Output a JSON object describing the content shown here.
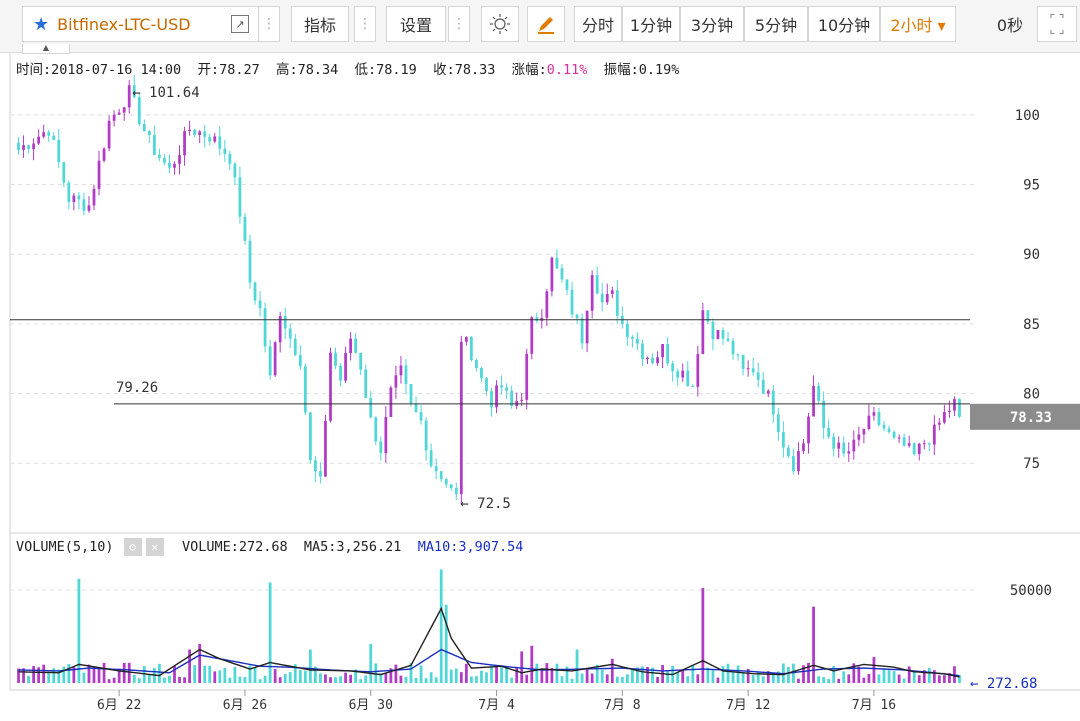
{
  "toolbar": {
    "symbol": "Bitfinex-LTC-USD",
    "indicator_label": "指标",
    "settings_label": "设置",
    "timeframes": [
      "分时",
      "1分钟",
      "3分钟",
      "5分钟",
      "10分钟",
      "2小时"
    ],
    "active_timeframe": "2小时",
    "countdown": "0秒",
    "accent_color": "#e07b00"
  },
  "info_bar": {
    "time": "时间:2018-07-16 14:00",
    "open": "开:78.27",
    "high": "高:78.34",
    "low": "低:78.19",
    "close": "收:78.33",
    "change_label": "涨幅:",
    "change_value": "0.11%",
    "amplitude": "振幅:0.19%"
  },
  "volume_info": {
    "title": "VOLUME(5,10)",
    "volume": "VOLUME:272.68",
    "ma5": "MA5:3,256.21",
    "ma10": "MA10:3,907.54"
  },
  "chart_data": {
    "type": "candlestick",
    "price_axis": {
      "ticks": [
        "100",
        "95",
        "90",
        "85",
        "80",
        "75"
      ],
      "ylim": [
        71.5,
        102.5
      ]
    },
    "volume_axis": {
      "ticks": [
        "50000"
      ],
      "ylim": [
        0,
        65000
      ]
    },
    "x_ticks": [
      "6月 22",
      "6月 26",
      "6月 30",
      "7月 4",
      "7月 8",
      "7月 12",
      "7月 16"
    ],
    "current_price": "78.33",
    "current_volume": "272.68",
    "max_label": "101.64",
    "min_label": "72.5",
    "hline_label": "79.26",
    "horizontal_lines": [
      85.3,
      79.26
    ],
    "up_color": "#b23bc6",
    "down_color": "#4fd6d6",
    "ma5_color": "#222222",
    "ma10_color": "#1b2fbf",
    "price_path": [
      [
        0,
        97.5
      ],
      [
        6,
        99
      ],
      [
        10,
        94
      ],
      [
        14,
        93.5
      ],
      [
        18,
        99.5
      ],
      [
        22,
        101.6
      ],
      [
        26,
        98
      ],
      [
        30,
        96
      ],
      [
        34,
        99
      ],
      [
        38,
        98.5
      ],
      [
        42,
        97
      ],
      [
        44,
        93
      ],
      [
        46,
        88
      ],
      [
        48,
        86
      ],
      [
        50,
        81
      ],
      [
        52,
        86
      ],
      [
        54,
        84
      ],
      [
        56,
        82.5
      ],
      [
        58,
        75
      ],
      [
        60,
        73.5
      ],
      [
        62,
        83
      ],
      [
        64,
        81
      ],
      [
        66,
        84
      ],
      [
        68,
        82
      ],
      [
        70,
        78
      ],
      [
        72,
        76
      ],
      [
        74,
        80
      ],
      [
        76,
        81.5
      ],
      [
        78,
        79
      ],
      [
        80,
        78
      ],
      [
        82,
        75
      ],
      [
        84,
        74.2
      ],
      [
        86,
        73
      ],
      [
        87,
        72.5
      ],
      [
        88,
        84
      ],
      [
        90,
        83
      ],
      [
        92,
        81
      ],
      [
        94,
        79.5
      ],
      [
        96,
        80.5
      ],
      [
        98,
        79
      ],
      [
        100,
        80
      ],
      [
        102,
        85
      ],
      [
        104,
        86
      ],
      [
        106,
        89.5
      ],
      [
        108,
        88
      ],
      [
        110,
        86
      ],
      [
        112,
        84
      ],
      [
        114,
        89
      ],
      [
        116,
        86.5
      ],
      [
        118,
        87
      ],
      [
        120,
        85
      ],
      [
        122,
        84.2
      ],
      [
        124,
        83
      ],
      [
        126,
        82.5
      ],
      [
        128,
        83.2
      ],
      [
        130,
        82
      ],
      [
        132,
        81.5
      ],
      [
        134,
        80.6
      ],
      [
        136,
        86
      ],
      [
        138,
        84.5
      ],
      [
        140,
        84
      ],
      [
        142,
        83
      ],
      [
        144,
        81.5
      ],
      [
        146,
        81.8
      ],
      [
        148,
        80.5
      ],
      [
        150,
        79
      ],
      [
        152,
        76.5
      ],
      [
        154,
        75
      ],
      [
        156,
        76.5
      ],
      [
        158,
        80.5
      ],
      [
        160,
        77.5
      ],
      [
        162,
        76.5
      ],
      [
        164,
        75.5
      ],
      [
        166,
        76.2
      ],
      [
        168,
        77.5
      ],
      [
        170,
        78.2
      ],
      [
        172,
        77.5
      ],
      [
        174,
        76.5
      ],
      [
        176,
        76.2
      ],
      [
        178,
        75.5
      ],
      [
        180,
        76.5
      ],
      [
        182,
        77.2
      ],
      [
        184,
        78.5
      ],
      [
        186,
        79.3
      ],
      [
        187,
        78.33
      ]
    ],
    "volume_spikes": [
      [
        12,
        56000
      ],
      [
        34,
        18000
      ],
      [
        36,
        21000
      ],
      [
        50,
        54000
      ],
      [
        58,
        18000
      ],
      [
        70,
        21000
      ],
      [
        84,
        61000
      ],
      [
        85,
        42000
      ],
      [
        100,
        17000
      ],
      [
        102,
        20000
      ],
      [
        111,
        18000
      ],
      [
        118,
        13000
      ],
      [
        136,
        51000
      ],
      [
        158,
        41000
      ],
      [
        170,
        14000
      ],
      [
        186,
        9000
      ]
    ],
    "ma5_path": [
      [
        0,
        6000
      ],
      [
        8,
        5500
      ],
      [
        12,
        10000
      ],
      [
        20,
        6500
      ],
      [
        28,
        4000
      ],
      [
        36,
        18000
      ],
      [
        40,
        13000
      ],
      [
        46,
        7500
      ],
      [
        50,
        11000
      ],
      [
        58,
        7000
      ],
      [
        66,
        6500
      ],
      [
        72,
        4500
      ],
      [
        78,
        9500
      ],
      [
        84,
        40000
      ],
      [
        86,
        24000
      ],
      [
        90,
        8000
      ],
      [
        96,
        9000
      ],
      [
        100,
        5500
      ],
      [
        104,
        7500
      ],
      [
        110,
        6500
      ],
      [
        118,
        10000
      ],
      [
        124,
        6000
      ],
      [
        130,
        4500
      ],
      [
        136,
        12000
      ],
      [
        140,
        6500
      ],
      [
        146,
        5000
      ],
      [
        152,
        4500
      ],
      [
        158,
        9500
      ],
      [
        162,
        6500
      ],
      [
        168,
        10000
      ],
      [
        174,
        8500
      ],
      [
        178,
        6000
      ],
      [
        184,
        5000
      ],
      [
        187,
        3256
      ]
    ],
    "ma10_path": [
      [
        0,
        7000
      ],
      [
        8,
        6500
      ],
      [
        14,
        8000
      ],
      [
        22,
        7000
      ],
      [
        30,
        5500
      ],
      [
        36,
        15000
      ],
      [
        42,
        12000
      ],
      [
        48,
        9000
      ],
      [
        54,
        8500
      ],
      [
        62,
        7000
      ],
      [
        70,
        6000
      ],
      [
        78,
        7500
      ],
      [
        84,
        18000
      ],
      [
        90,
        11000
      ],
      [
        98,
        8500
      ],
      [
        104,
        7000
      ],
      [
        112,
        7500
      ],
      [
        120,
        8000
      ],
      [
        128,
        6500
      ],
      [
        136,
        7500
      ],
      [
        144,
        6500
      ],
      [
        152,
        5000
      ],
      [
        160,
        7500
      ],
      [
        168,
        8000
      ],
      [
        176,
        7000
      ],
      [
        182,
        5500
      ],
      [
        187,
        3907
      ]
    ]
  }
}
